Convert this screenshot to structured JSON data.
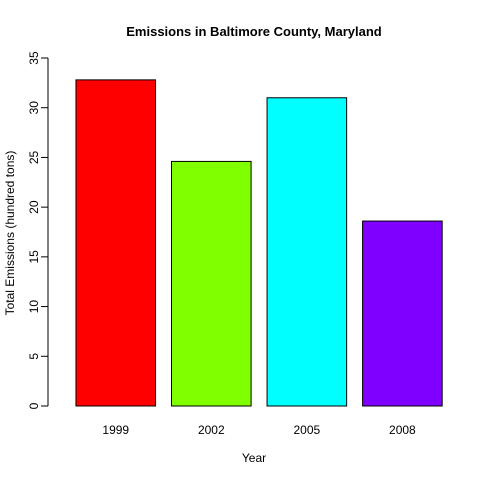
{
  "chart_data": {
    "type": "bar",
    "title": "Emissions in Baltimore County, Maryland",
    "xlabel": "Year",
    "ylabel": "Total Emissions (hundred tons)",
    "categories": [
      "1999",
      "2002",
      "2005",
      "2008"
    ],
    "values": [
      32.8,
      24.6,
      31.0,
      18.6
    ],
    "colors": [
      "#ff0000",
      "#80ff00",
      "#00ffff",
      "#8000ff"
    ],
    "ylim": [
      0,
      35
    ],
    "yticks": [
      0,
      5,
      10,
      15,
      20,
      25,
      30,
      35
    ],
    "grid": false,
    "legend": "none"
  }
}
